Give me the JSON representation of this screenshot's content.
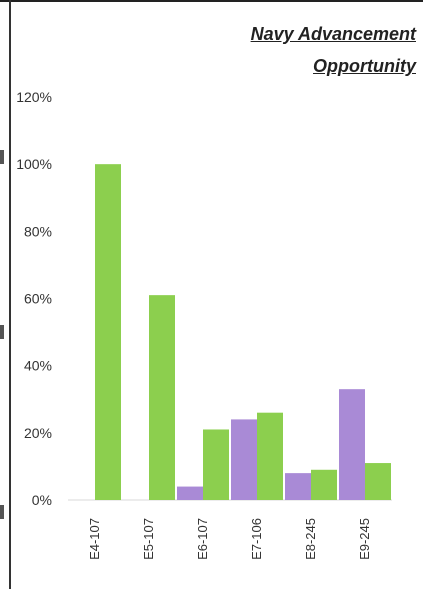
{
  "chart_data": {
    "type": "bar",
    "title_lines": [
      "Navy Advancement",
      "Opportunity"
    ],
    "categories": [
      "E4-107",
      "E5-107",
      "E6-107",
      "E7-106",
      "E8-245",
      "E9-245"
    ],
    "series": [
      {
        "color": "#a98ad6",
        "values": [
          0,
          0,
          4,
          24,
          8,
          33
        ]
      },
      {
        "color": "#8ccf4e",
        "values": [
          100,
          61,
          21,
          26,
          9,
          11
        ]
      }
    ],
    "ylim": [
      0,
      120
    ],
    "yticks": [
      0,
      20,
      40,
      60,
      80,
      100,
      120
    ],
    "ytick_labels": [
      "0%",
      "20%",
      "40%",
      "60%",
      "80%",
      "100%",
      "120%"
    ],
    "grid": false,
    "legend": "none"
  }
}
